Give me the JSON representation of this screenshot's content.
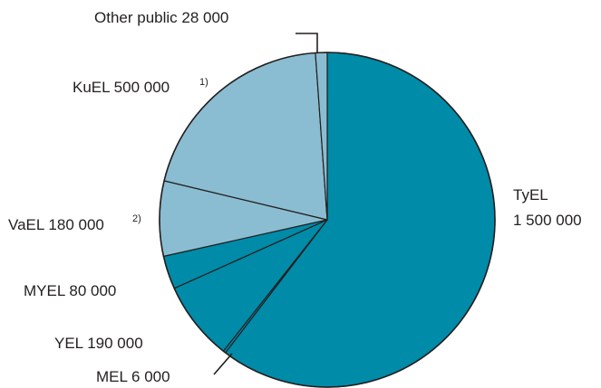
{
  "chart_data": {
    "type": "pie",
    "title": "",
    "slices": [
      {
        "name": "TyEL",
        "value": 1500000,
        "label_line1": "TyEL",
        "label_line2": "1 500 000",
        "color": "#008ba8"
      },
      {
        "name": "MEL",
        "value": 6000,
        "label": "MEL 6 000",
        "color": "#008ba8"
      },
      {
        "name": "YEL",
        "value": 190000,
        "label": "YEL 190 000",
        "color": "#008ba8"
      },
      {
        "name": "MYEL",
        "value": 80000,
        "label": "MYEL 80 000",
        "color": "#008ba8"
      },
      {
        "name": "VaEL",
        "value": 180000,
        "label": "VaEL 180 000",
        "footnote": "2)",
        "color": "#8abdd1"
      },
      {
        "name": "KuEL",
        "value": 500000,
        "label": "KuEL 500 000",
        "footnote": "1)",
        "color": "#8abdd1"
      },
      {
        "name": "Other public",
        "value": 28000,
        "label": "Other public 28 000",
        "color": "#8abdd1"
      }
    ],
    "colors": {
      "private_sector": "#008ba8",
      "public_sector": "#8abdd1",
      "outline": "#231f20"
    }
  }
}
